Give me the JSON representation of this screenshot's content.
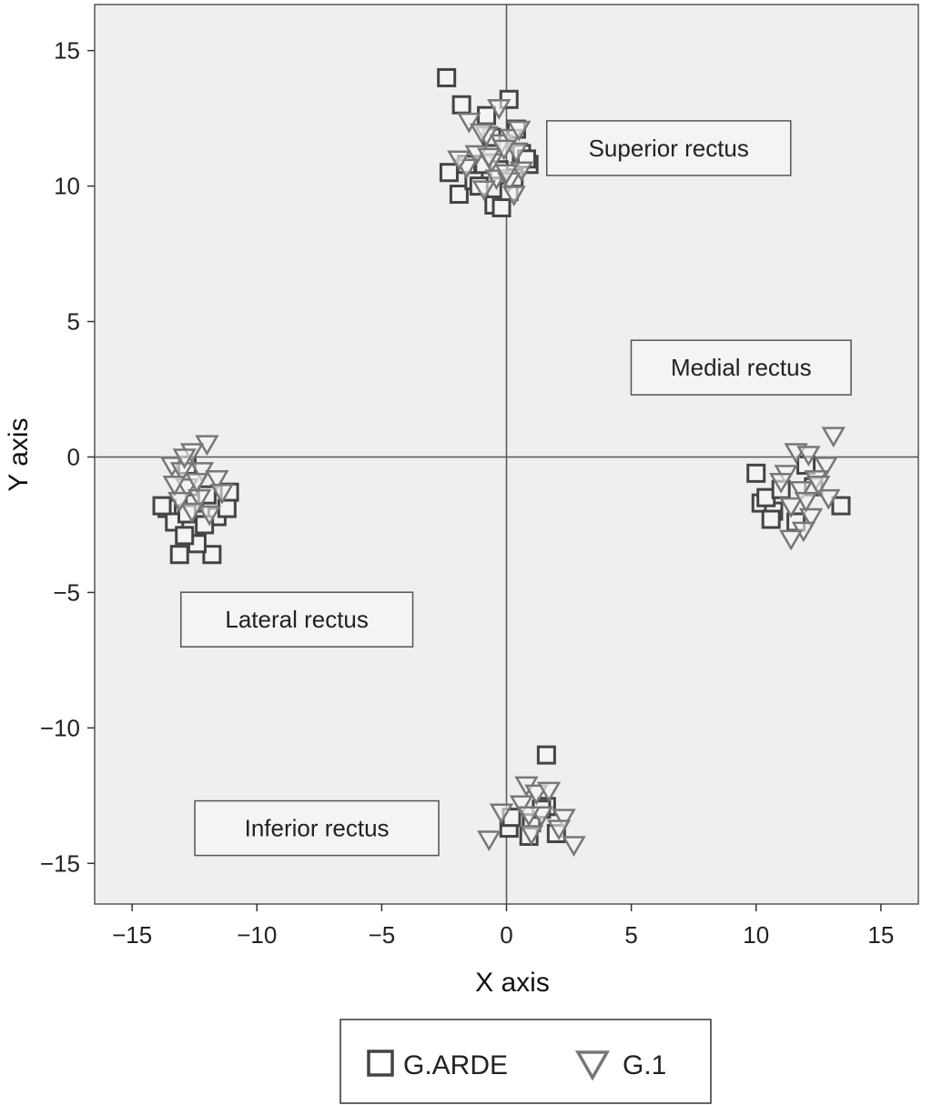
{
  "chart_data": {
    "type": "scatter",
    "title": "",
    "xlabel": "X axis",
    "ylabel": "Y axis",
    "xlim": [
      -16.5,
      16.5
    ],
    "ylim": [
      -16.5,
      16.7
    ],
    "xticks": [
      -15,
      -10,
      -5,
      0,
      5,
      10,
      15
    ],
    "yticks": [
      -15,
      -10,
      -5,
      0,
      5,
      10,
      15
    ],
    "xtick_labels": [
      "−15",
      "−10",
      "−5",
      "0",
      "5",
      "10",
      "15"
    ],
    "ytick_labels": [
      "−15",
      "−10",
      "−5",
      "0",
      "5",
      "10",
      "15"
    ],
    "grid": false,
    "reference_lines": {
      "x": 0,
      "y": 0
    },
    "legend_position": "bottom",
    "plot_background": "#efefef",
    "annotations": [
      {
        "text": "Superior rectus",
        "x": 6.5,
        "y": 11.4
      },
      {
        "text": "Medial rectus",
        "x": 9.4,
        "y": 3.3
      },
      {
        "text": "Lateral rectus",
        "x": -8.4,
        "y": -6.0
      },
      {
        "text": "Inferior rectus",
        "x": -7.6,
        "y": -13.7
      }
    ],
    "series": [
      {
        "name": "G.ARDE",
        "marker": "square",
        "color": "#444444",
        "points": [
          [
            -2.4,
            14.0
          ],
          [
            -1.8,
            13.0
          ],
          [
            0.1,
            13.2
          ],
          [
            -2.3,
            10.5
          ],
          [
            -1.9,
            9.7
          ],
          [
            -1.3,
            10.2
          ],
          [
            -0.9,
            10.8
          ],
          [
            -0.5,
            9.3
          ],
          [
            -0.2,
            9.2
          ],
          [
            0.1,
            9.8
          ],
          [
            0.6,
            11.2
          ],
          [
            0.9,
            10.8
          ],
          [
            0.3,
            10.3
          ],
          [
            -0.6,
            11.8
          ],
          [
            -1.1,
            10.0
          ],
          [
            0.8,
            11.0
          ],
          [
            -0.3,
            10.6
          ],
          [
            -1.6,
            10.8
          ],
          [
            0.4,
            12.1
          ],
          [
            -0.8,
            12.6
          ],
          [
            -12.8,
            -0.3
          ],
          [
            -13.6,
            -1.9
          ],
          [
            -13.3,
            -2.4
          ],
          [
            -12.5,
            -1.7
          ],
          [
            -11.6,
            -2.2
          ],
          [
            -11.1,
            -1.3
          ],
          [
            -13.1,
            -3.6
          ],
          [
            -11.8,
            -3.6
          ],
          [
            -12.4,
            -3.2
          ],
          [
            -12.1,
            -2.5
          ],
          [
            -11.2,
            -1.9
          ],
          [
            -13.8,
            -1.8
          ],
          [
            -12.8,
            -2.1
          ],
          [
            -12.0,
            -1.4
          ],
          [
            -12.9,
            -2.9
          ],
          [
            10.0,
            -0.6
          ],
          [
            10.2,
            -1.7
          ],
          [
            10.7,
            -2.0
          ],
          [
            11.6,
            -2.4
          ],
          [
            13.4,
            -1.8
          ],
          [
            10.4,
            -1.5
          ],
          [
            12.3,
            -1.1
          ],
          [
            10.6,
            -2.3
          ],
          [
            11.0,
            -1.2
          ],
          [
            12.0,
            -0.3
          ],
          [
            1.6,
            -11.0
          ],
          [
            0.1,
            -13.7
          ],
          [
            0.2,
            -13.3
          ],
          [
            1.0,
            -13.5
          ],
          [
            1.6,
            -12.9
          ],
          [
            2.0,
            -13.9
          ],
          [
            0.9,
            -14.0
          ],
          [
            1.4,
            -13.0
          ]
        ]
      },
      {
        "name": "G.1",
        "marker": "triangle-down",
        "color": "#777777",
        "points": [
          [
            -0.3,
            12.9
          ],
          [
            -1.5,
            12.4
          ],
          [
            -0.8,
            11.9
          ],
          [
            -0.2,
            11.6
          ],
          [
            0.2,
            11.8
          ],
          [
            -1.2,
            11.2
          ],
          [
            -0.6,
            10.9
          ],
          [
            0.4,
            11.3
          ],
          [
            0.6,
            10.6
          ],
          [
            -1.6,
            10.7
          ],
          [
            -0.4,
            10.3
          ],
          [
            0.1,
            10.2
          ],
          [
            -0.9,
            9.9
          ],
          [
            0.3,
            9.7
          ],
          [
            -0.1,
            11.4
          ],
          [
            -1.0,
            12.0
          ],
          [
            0.5,
            12.1
          ],
          [
            -1.9,
            11.0
          ],
          [
            0.0,
            10.5
          ],
          [
            -0.7,
            11.1
          ],
          [
            -12.0,
            0.5
          ],
          [
            -12.6,
            0.2
          ],
          [
            -13.4,
            -0.3
          ],
          [
            -12.2,
            -0.5
          ],
          [
            -11.6,
            -0.8
          ],
          [
            -12.8,
            -1.1
          ],
          [
            -13.0,
            -0.5
          ],
          [
            -12.3,
            -1.5
          ],
          [
            -11.9,
            -2.1
          ],
          [
            -12.6,
            -2.0
          ],
          [
            -13.1,
            -1.6
          ],
          [
            -11.4,
            -1.3
          ],
          [
            -12.9,
            0.0
          ],
          [
            -12.4,
            -0.9
          ],
          [
            -13.3,
            -1.0
          ],
          [
            13.1,
            0.8
          ],
          [
            11.6,
            0.2
          ],
          [
            12.1,
            0.1
          ],
          [
            12.8,
            -0.3
          ],
          [
            11.2,
            -0.6
          ],
          [
            12.4,
            -0.8
          ],
          [
            11.8,
            -1.2
          ],
          [
            12.9,
            -1.5
          ],
          [
            11.4,
            -1.8
          ],
          [
            12.2,
            -2.2
          ],
          [
            11.9,
            -2.7
          ],
          [
            11.4,
            -3.0
          ],
          [
            12.5,
            -1.0
          ],
          [
            11.0,
            -0.9
          ],
          [
            12.0,
            -1.6
          ],
          [
            0.8,
            -12.1
          ],
          [
            1.2,
            -12.4
          ],
          [
            1.7,
            -12.3
          ],
          [
            0.6,
            -12.8
          ],
          [
            1.4,
            -13.2
          ],
          [
            2.3,
            -13.3
          ],
          [
            2.1,
            -13.7
          ],
          [
            2.7,
            -14.3
          ],
          [
            1.0,
            -13.9
          ],
          [
            -0.7,
            -14.1
          ],
          [
            -0.2,
            -13.1
          ],
          [
            0.9,
            -13.2
          ]
        ]
      }
    ]
  }
}
